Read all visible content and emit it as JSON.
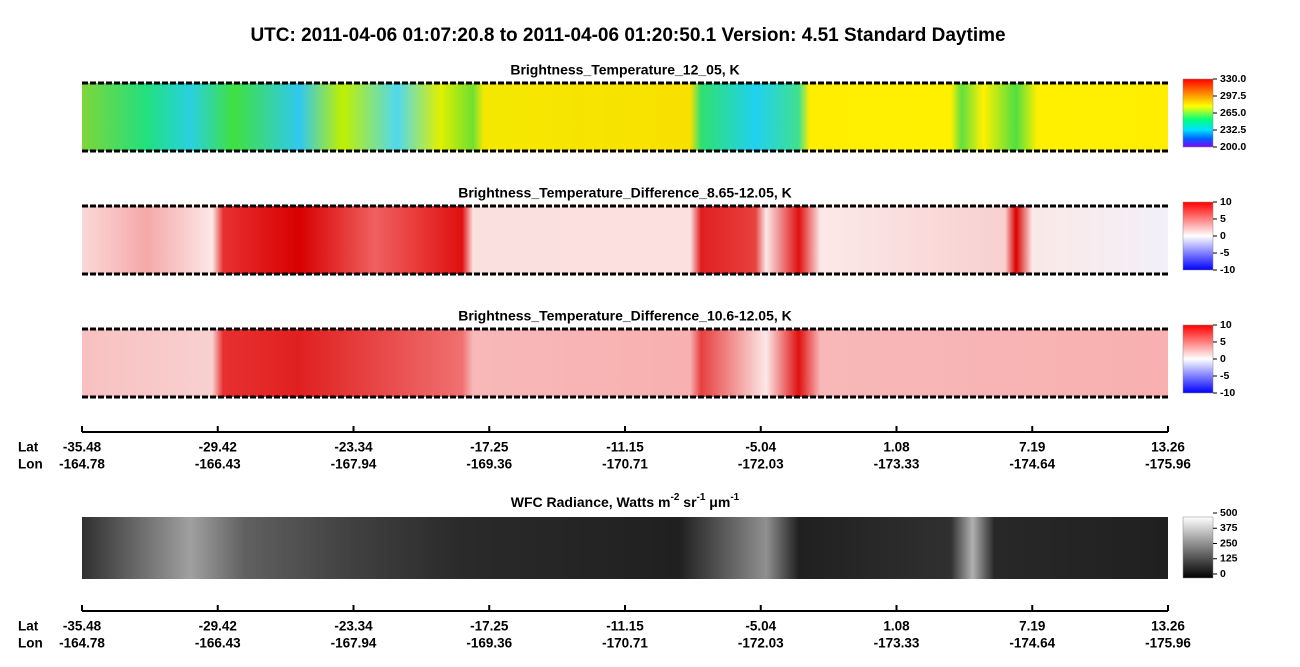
{
  "title": "UTC:  2011-04-06   01:07:20.8  to  2011-04-06   01:20:50.1    Version: 4.51  Standard Daytime",
  "panels": [
    {
      "title": "Brightness_Temperature_12_05, K",
      "colorbar_labels": [
        "330.0",
        "297.5",
        "265.0",
        "232.5",
        "200.0"
      ]
    },
    {
      "title": "Brightness_Temperature_Difference_8.65-12.05, K",
      "colorbar_labels": [
        "10",
        "5",
        "0",
        "-5",
        "-10"
      ]
    },
    {
      "title": "Brightness_Temperature_Difference_10.6-12.05, K",
      "colorbar_labels": [
        "10",
        "5",
        "0",
        "-5",
        "-10"
      ]
    }
  ],
  "wfc": {
    "title": [
      "WFC Radiance, Watts m",
      "-2",
      " sr",
      "-1",
      " μm",
      "-1"
    ],
    "colorbar_labels": [
      "500",
      "375",
      "250",
      "125",
      "0"
    ]
  },
  "axes": [
    {
      "lat_label": "Lat",
      "lon_label": "Lon",
      "lat": [
        "-35.48",
        "-29.42",
        "-23.34",
        "-17.25",
        "-11.15",
        "-5.04",
        "1.08",
        "7.19",
        "13.26"
      ],
      "lon": [
        "-164.78",
        "-166.43",
        "-167.94",
        "-169.36",
        "-170.71",
        "-172.03",
        "-173.33",
        "-174.64",
        "-175.96"
      ]
    },
    {
      "lat_label": "Lat",
      "lon_label": "Lon",
      "lat": [
        "-35.48",
        "-29.42",
        "-23.34",
        "-17.25",
        "-11.15",
        "-5.04",
        "1.08",
        "7.19",
        "13.26"
      ],
      "lon": [
        "-164.78",
        "-166.43",
        "-167.94",
        "-169.36",
        "-170.71",
        "-172.03",
        "-173.33",
        "-174.64",
        "-175.96"
      ]
    }
  ]
}
